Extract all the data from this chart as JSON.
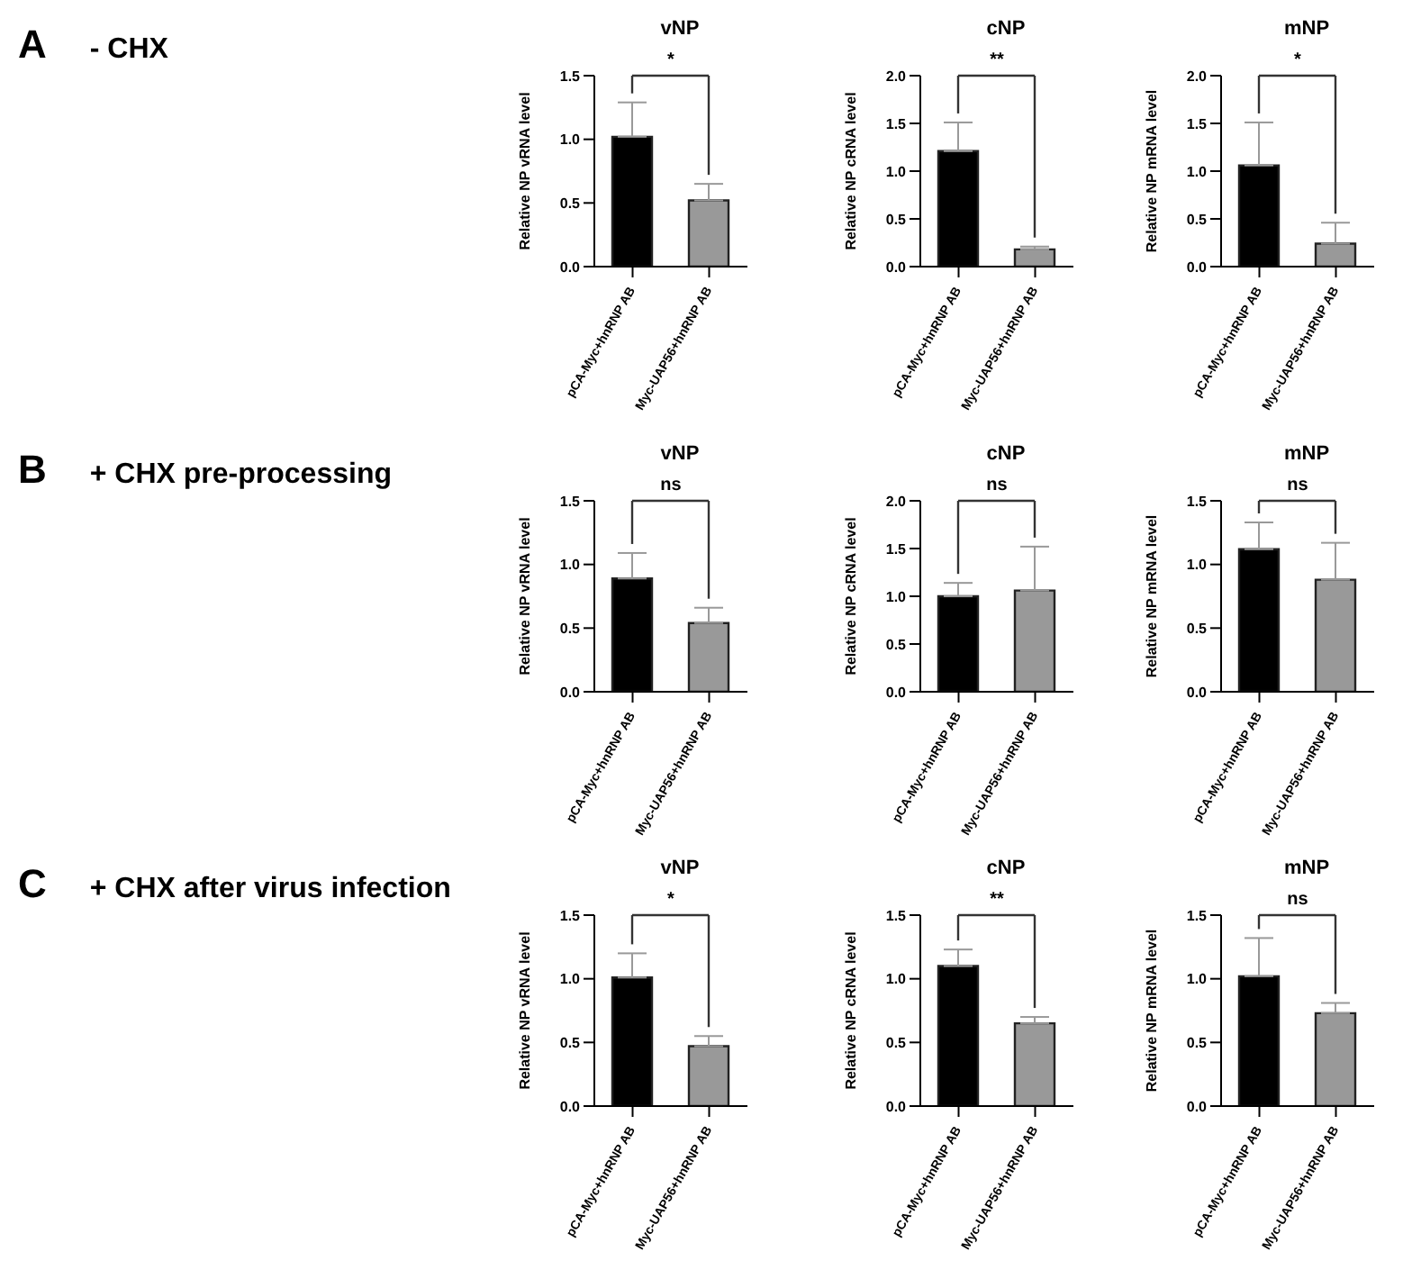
{
  "chart_data": [
    {
      "type": "other",
      "annotations": [
        "A",
        "- CHX"
      ]
    },
    {
      "type": "bar",
      "title": "vNP",
      "ylabel": "Relative NP vRNA level",
      "categories": [
        "pCA-Myc+hnRNP AB",
        "Myc-UAP56+hnRNP AB"
      ],
      "values": [
        1.02,
        0.52
      ],
      "errors": [
        [
          1.02,
          1.29
        ],
        [
          0.52,
          0.65
        ]
      ],
      "colors": [
        "#000000",
        "#999999"
      ],
      "ylim": [
        0,
        1.5
      ],
      "yticks": [
        {
          "value": 0,
          "label": "0.0"
        },
        {
          "value": 0.5,
          "label": "0.5"
        },
        {
          "value": 1,
          "label": "1.0"
        },
        {
          "value": 1.5,
          "label": "1.5"
        }
      ],
      "annotations": [
        "*"
      ]
    },
    {
      "type": "bar",
      "title": "cNP",
      "ylabel": "Relative NP cRNA level",
      "categories": [
        "pCA-Myc+hnRNP AB",
        "Myc-UAP56+hnRNP AB"
      ],
      "values": [
        1.21,
        0.18
      ],
      "errors": [
        [
          1.21,
          1.51
        ],
        [
          0.18,
          0.21
        ]
      ],
      "colors": [
        "#000000",
        "#999999"
      ],
      "ylim": [
        0,
        2
      ],
      "yticks": [
        {
          "value": 0,
          "label": "0.0"
        },
        {
          "value": 0.5,
          "label": "0.5"
        },
        {
          "value": 1,
          "label": "1.0"
        },
        {
          "value": 1.5,
          "label": "1.5"
        },
        {
          "value": 2,
          "label": "2.0"
        }
      ],
      "annotations": [
        "**"
      ]
    },
    {
      "type": "bar",
      "title": "mNP",
      "ylabel": "Relative NP mRNA level",
      "categories": [
        "pCA-Myc+hnRNP AB",
        "Myc-UAP56+hnRNP AB"
      ],
      "values": [
        1.06,
        0.24
      ],
      "errors": [
        [
          1.06,
          1.51
        ],
        [
          0.24,
          0.46
        ]
      ],
      "colors": [
        "#000000",
        "#999999"
      ],
      "ylim": [
        0,
        2
      ],
      "yticks": [
        {
          "value": 0,
          "label": "0.0"
        },
        {
          "value": 0.5,
          "label": "0.5"
        },
        {
          "value": 1,
          "label": "1.0"
        },
        {
          "value": 1.5,
          "label": "1.5"
        },
        {
          "value": 2,
          "label": "2.0"
        }
      ],
      "annotations": [
        "*"
      ]
    },
    {
      "type": "other",
      "annotations": [
        "B",
        "+ CHX pre-processing"
      ]
    },
    {
      "type": "bar",
      "title": "vNP",
      "ylabel": "Relative NP vRNA level",
      "categories": [
        "pCA-Myc+hnRNP AB",
        "Myc-UAP56+hnRNP AB"
      ],
      "values": [
        0.89,
        0.54
      ],
      "errors": [
        [
          0.89,
          1.09
        ],
        [
          0.54,
          0.66
        ]
      ],
      "colors": [
        "#000000",
        "#999999"
      ],
      "ylim": [
        0,
        1.5
      ],
      "yticks": [
        {
          "value": 0,
          "label": "0.0"
        },
        {
          "value": 0.5,
          "label": "0.5"
        },
        {
          "value": 1,
          "label": "1.0"
        },
        {
          "value": 1.5,
          "label": "1.5"
        }
      ],
      "annotations": [
        "ns"
      ]
    },
    {
      "type": "bar",
      "title": "cNP",
      "ylabel": "Relative NP cRNA level",
      "categories": [
        "pCA-Myc+hnRNP AB",
        "Myc-UAP56+hnRNP AB"
      ],
      "values": [
        1.0,
        1.06
      ],
      "errors": [
        [
          1.0,
          1.14
        ],
        [
          1.06,
          1.52
        ]
      ],
      "colors": [
        "#000000",
        "#999999"
      ],
      "ylim": [
        0,
        2
      ],
      "yticks": [
        {
          "value": 0,
          "label": "0.0"
        },
        {
          "value": 0.5,
          "label": "0.5"
        },
        {
          "value": 1,
          "label": "1.0"
        },
        {
          "value": 1.5,
          "label": "1.5"
        },
        {
          "value": 2,
          "label": "2.0"
        }
      ],
      "annotations": [
        "ns"
      ]
    },
    {
      "type": "bar",
      "title": "mNP",
      "ylabel": "Relative NP mRNA level",
      "categories": [
        "pCA-Myc+hnRNP AB",
        "Myc-UAP56+hnRNP AB"
      ],
      "values": [
        1.12,
        0.88
      ],
      "errors": [
        [
          1.12,
          1.33
        ],
        [
          0.88,
          1.17
        ]
      ],
      "colors": [
        "#000000",
        "#999999"
      ],
      "ylim": [
        0,
        1.5
      ],
      "yticks": [
        {
          "value": 0,
          "label": "0.0"
        },
        {
          "value": 0.5,
          "label": "0.5"
        },
        {
          "value": 1,
          "label": "1.0"
        },
        {
          "value": 1.5,
          "label": "1.5"
        }
      ],
      "annotations": [
        "ns"
      ]
    },
    {
      "type": "other",
      "annotations": [
        "C",
        "+ CHX after virus infection"
      ]
    },
    {
      "type": "bar",
      "title": "vNP",
      "ylabel": "Relative NP vRNA level",
      "categories": [
        "pCA-Myc+hnRNP AB",
        "Myc-UAP56+hnRNP AB"
      ],
      "values": [
        1.01,
        0.47
      ],
      "errors": [
        [
          1.01,
          1.2
        ],
        [
          0.47,
          0.55
        ]
      ],
      "colors": [
        "#000000",
        "#999999"
      ],
      "ylim": [
        0,
        1.5
      ],
      "yticks": [
        {
          "value": 0,
          "label": "0.0"
        },
        {
          "value": 0.5,
          "label": "0.5"
        },
        {
          "value": 1,
          "label": "1.0"
        },
        {
          "value": 1.5,
          "label": "1.5"
        }
      ],
      "annotations": [
        "*"
      ]
    },
    {
      "type": "bar",
      "title": "cNP",
      "ylabel": "Relative NP cRNA level",
      "categories": [
        "pCA-Myc+hnRNP AB",
        "Myc-UAP56+hnRNP AB"
      ],
      "values": [
        1.1,
        0.65
      ],
      "errors": [
        [
          1.1,
          1.23
        ],
        [
          0.65,
          0.7
        ]
      ],
      "colors": [
        "#000000",
        "#999999"
      ],
      "ylim": [
        0,
        1.5
      ],
      "yticks": [
        {
          "value": 0,
          "label": "0.0"
        },
        {
          "value": 0.5,
          "label": "0.5"
        },
        {
          "value": 1,
          "label": "1.0"
        },
        {
          "value": 1.5,
          "label": "1.5"
        }
      ],
      "annotations": [
        "**"
      ]
    },
    {
      "type": "bar",
      "title": "mNP",
      "ylabel": "Relative NP mRNA level",
      "categories": [
        "pCA-Myc+hnRNP AB",
        "Myc-UAP56+hnRNP AB"
      ],
      "values": [
        1.02,
        0.73
      ],
      "errors": [
        [
          1.02,
          1.32
        ],
        [
          0.73,
          0.81
        ]
      ],
      "colors": [
        "#000000",
        "#999999"
      ],
      "ylim": [
        0,
        1.5
      ],
      "yticks": [
        {
          "value": 0,
          "label": "0.0"
        },
        {
          "value": 0.5,
          "label": "0.5"
        },
        {
          "value": 1,
          "label": "1.0"
        },
        {
          "value": 1.5,
          "label": "1.5"
        }
      ],
      "annotations": [
        "ns"
      ]
    }
  ]
}
